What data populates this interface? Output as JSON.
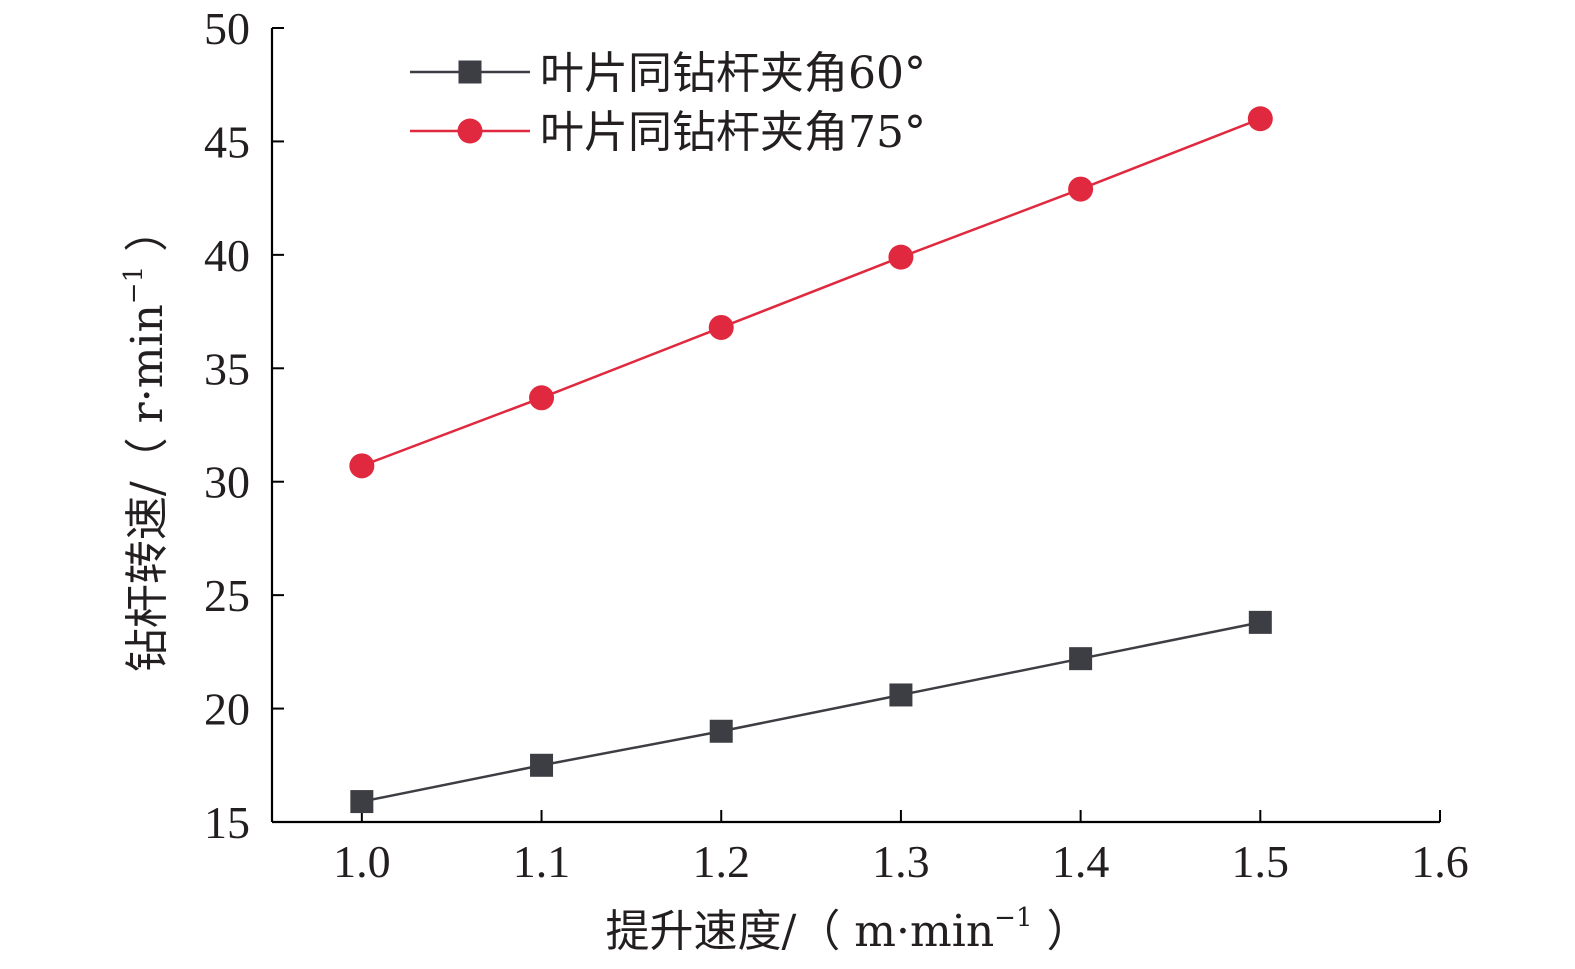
{
  "chart_data": {
    "type": "line",
    "x": [
      1.0,
      1.1,
      1.2,
      1.3,
      1.4,
      1.5
    ],
    "xlim": [
      0.95,
      1.6
    ],
    "ylim": [
      15,
      50
    ],
    "xticks": [
      "1.0",
      "1.1",
      "1.2",
      "1.3",
      "1.4",
      "1.5",
      "1.6"
    ],
    "yticks": [
      "15",
      "20",
      "25",
      "30",
      "35",
      "40",
      "45",
      "50"
    ],
    "xlabel": {
      "main": "提升速度/（ m·min",
      "sup": "−1",
      "end": " ）"
    },
    "ylabel": {
      "main": "钻杆转速/（ r·min",
      "sup": "−1",
      "end": " ）"
    },
    "legend_position": "top-left",
    "grid": false,
    "series": [
      {
        "name": "叶片同钻杆夹角60°",
        "marker": "square",
        "color": "#3d3d44",
        "values": [
          15.9,
          17.5,
          19.0,
          20.6,
          22.2,
          23.8
        ]
      },
      {
        "name": "叶片同钻杆夹角75°",
        "marker": "circle",
        "color": "#e0293f",
        "values": [
          30.7,
          33.7,
          36.8,
          39.9,
          42.9,
          46.0
        ]
      }
    ]
  }
}
